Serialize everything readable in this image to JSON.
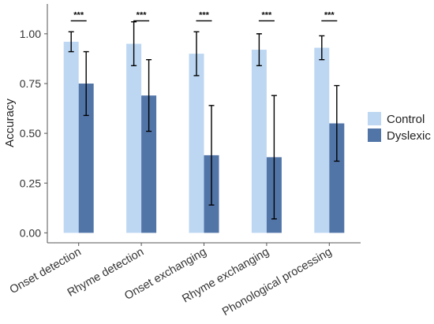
{
  "chart_data": {
    "type": "bar",
    "ylabel": "Accuracy",
    "xlabel": "",
    "ylim": [
      -0.05,
      1.15
    ],
    "yticks": [
      "0.00",
      "0.25",
      "0.50",
      "0.75",
      "1.00"
    ],
    "ytick_values": [
      0,
      0.25,
      0.5,
      0.75,
      1.0
    ],
    "categories": [
      "Onset detection",
      "Rhyme detection",
      "Onset exchanging",
      "Rhyme exchanging",
      "Phonological processing"
    ],
    "series": [
      {
        "name": "Control",
        "color": "#bdd7f2",
        "values": [
          0.96,
          0.95,
          0.9,
          0.92,
          0.93
        ],
        "err_low": [
          0.91,
          0.84,
          0.79,
          0.84,
          0.87
        ],
        "err_high": [
          1.01,
          1.06,
          1.01,
          1.0,
          0.99
        ]
      },
      {
        "name": "Dyslexic",
        "color": "#5275a8",
        "values": [
          0.75,
          0.69,
          0.39,
          0.38,
          0.55
        ],
        "err_low": [
          0.59,
          0.51,
          0.14,
          0.07,
          0.36
        ],
        "err_high": [
          0.91,
          0.87,
          0.64,
          0.69,
          0.74
        ]
      }
    ],
    "significance": [
      "***",
      "***",
      "***",
      "***",
      "***"
    ],
    "legend_position": "right",
    "grid": false
  }
}
